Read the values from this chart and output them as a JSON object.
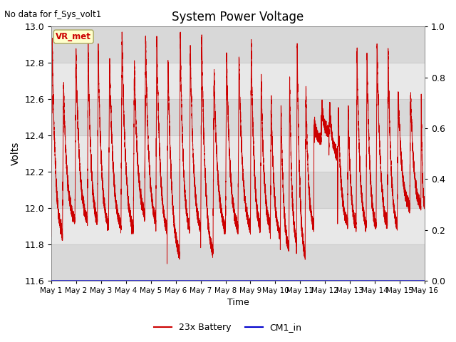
{
  "title": "System Power Voltage",
  "top_left_text": "No data for f_Sys_volt1",
  "xlabel": "Time",
  "ylabel": "Volts",
  "ylim_left": [
    11.6,
    13.0
  ],
  "ylim_right": [
    0.0,
    1.0
  ],
  "yticks_left": [
    11.6,
    11.8,
    12.0,
    12.2,
    12.4,
    12.6,
    12.8,
    13.0
  ],
  "yticks_right": [
    0.0,
    0.2,
    0.4,
    0.6,
    0.8,
    1.0
  ],
  "xtick_labels": [
    "May 1",
    "May 2",
    "May 3",
    "May 4",
    "May 5",
    "May 6",
    "May 7",
    "May 8",
    "May 9",
    "May 10",
    "May 11",
    "May 12",
    "May 13",
    "May 14",
    "May 15",
    "May 16"
  ],
  "line_color_battery": "#cc0000",
  "line_color_cm1": "#0000cc",
  "legend_labels": [
    "23x Battery",
    "CM1_in"
  ],
  "vr_met_label": "VR_met",
  "vr_met_bg": "#ffffcc",
  "vr_met_text_color": "#cc0000",
  "background_color": "#e0e0e0",
  "band_colors": [
    "#d8d8d8",
    "#e8e8e8"
  ],
  "grid_color": "#cccccc",
  "figsize": [
    6.4,
    4.8
  ],
  "dpi": 100
}
